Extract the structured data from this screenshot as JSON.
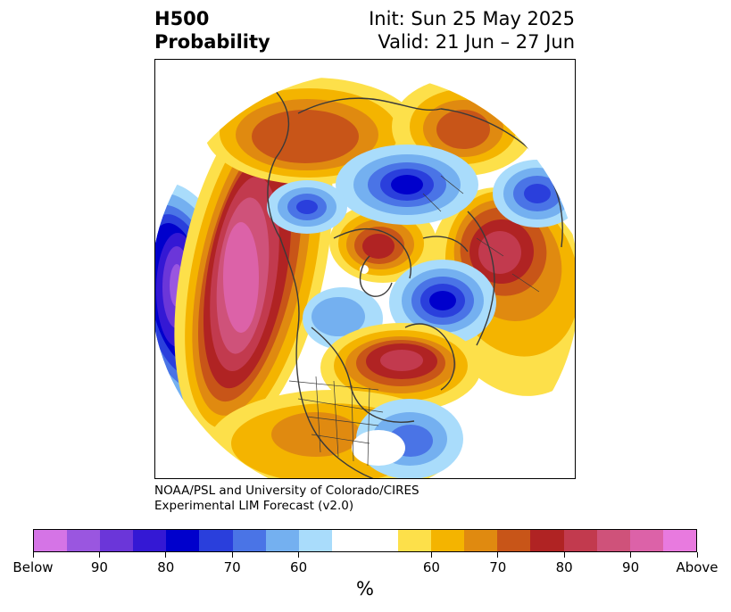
{
  "header": {
    "left_line1": "H500",
    "left_line2": "Probability",
    "right_line1": "Init: Sun 25 May 2025",
    "right_line2": "Valid: 21 Jun – 27 Jun"
  },
  "credit": {
    "line1": "NOAA/PSL and University of Colorado/CIRES",
    "line2": "Experimental LIM Forecast (v2.0)"
  },
  "colorbar": {
    "unit": "%",
    "tick_labels": [
      "Below",
      "90",
      "80",
      "70",
      "60",
      "60",
      "70",
      "80",
      "90",
      "Above"
    ],
    "below_colors": [
      "#d574e6",
      "#9a56e0",
      "#6b36d9",
      "#3418d4",
      "#0000cc",
      "#2a3fdc",
      "#4a74e6",
      "#74b0f0",
      "#a9dcfb"
    ],
    "blank_color": "#ffffff",
    "above_colors": [
      "#fde04a",
      "#f4b400",
      "#e08a10",
      "#c85518",
      "#b02323",
      "#c23a4e",
      "#cf527a",
      "#dc62a8",
      "#e87adf"
    ]
  },
  "map": {
    "projection": "north polar stereographic",
    "features": [
      "coastlines",
      "country borders",
      "US state borders"
    ],
    "anomalies": [
      {
        "region": "North Pacific",
        "sign": "below",
        "peak_percent": 90
      },
      {
        "region": "Gulf of Alaska / Western North America",
        "sign": "above",
        "peak_percent": 90
      },
      {
        "region": "Eastern Canada / Hudson Bay",
        "sign": "above",
        "peak_percent": 80
      },
      {
        "region": "Southeastern United States",
        "sign": "below",
        "peak_percent": 70
      },
      {
        "region": "Greenland Sea",
        "sign": "above",
        "peak_percent": 80
      },
      {
        "region": "Eastern Siberia",
        "sign": "below",
        "peak_percent": 80
      },
      {
        "region": "Scandinavia / Western Russia",
        "sign": "below",
        "peak_percent": 80
      },
      {
        "region": "Europe / Eastern Atlantic",
        "sign": "above",
        "peak_percent": 80
      },
      {
        "region": "Central Asia",
        "sign": "above",
        "peak_percent": 70
      },
      {
        "region": "Western Asia",
        "sign": "below",
        "peak_percent": 70
      }
    ]
  }
}
